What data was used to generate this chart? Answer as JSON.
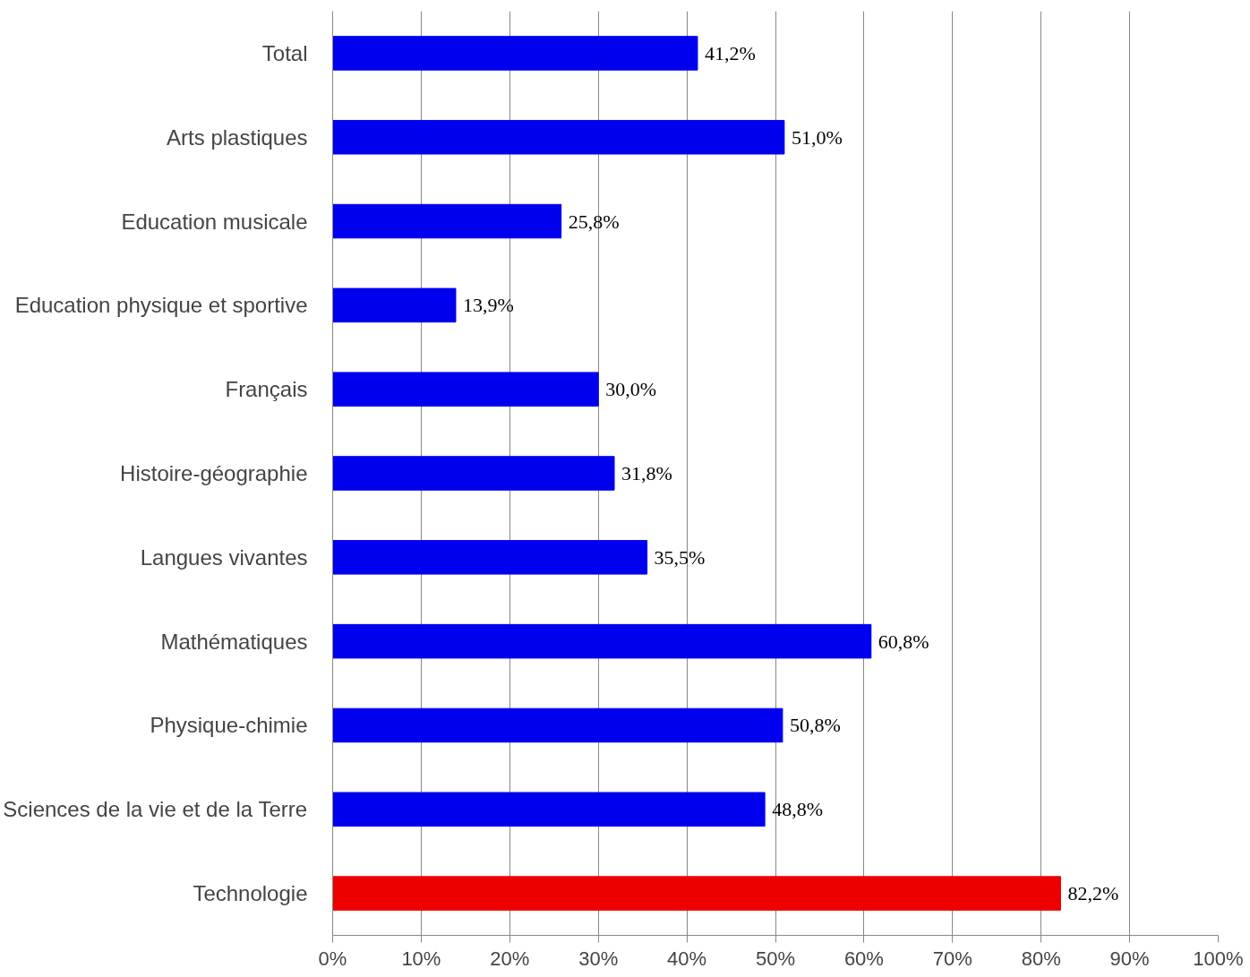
{
  "chart_data": {
    "type": "bar",
    "orientation": "horizontal",
    "categories": [
      "Total",
      "Arts plastiques",
      "Education musicale",
      "Education physique et sportive",
      "Français",
      "Histoire-géographie",
      "Langues vivantes",
      "Mathématiques",
      "Physique-chimie",
      "Sciences de la vie et de la Terre",
      "Technologie"
    ],
    "values": [
      41.2,
      51.0,
      25.8,
      13.9,
      30.0,
      31.8,
      35.5,
      60.8,
      50.8,
      48.8,
      82.2
    ],
    "colors": [
      "#0000ee",
      "#0000ee",
      "#0000ee",
      "#0000ee",
      "#0000ee",
      "#0000ee",
      "#0000ee",
      "#0000ee",
      "#0000ee",
      "#0000ee",
      "#ee0000"
    ],
    "value_labels": [
      "41,2%",
      "51,0%",
      "25,8%",
      "13,9%",
      "30,0%",
      "31,8%",
      "35,5%",
      "60,8%",
      "50,8%",
      "48,8%",
      "82,2%"
    ],
    "xlim": [
      0,
      100
    ],
    "xticks": [
      {
        "value": 0,
        "label": "0%"
      },
      {
        "value": 10,
        "label": "10%"
      },
      {
        "value": 20,
        "label": "20%"
      },
      {
        "value": 30,
        "label": "30%"
      },
      {
        "value": 40,
        "label": "40%"
      },
      {
        "value": 50,
        "label": "50%"
      },
      {
        "value": 60,
        "label": "60%"
      },
      {
        "value": 70,
        "label": "70%"
      },
      {
        "value": 80,
        "label": "80%"
      },
      {
        "value": 90,
        "label": "90%"
      },
      {
        "value": 100,
        "label": "100%"
      }
    ],
    "grid": "x"
  }
}
